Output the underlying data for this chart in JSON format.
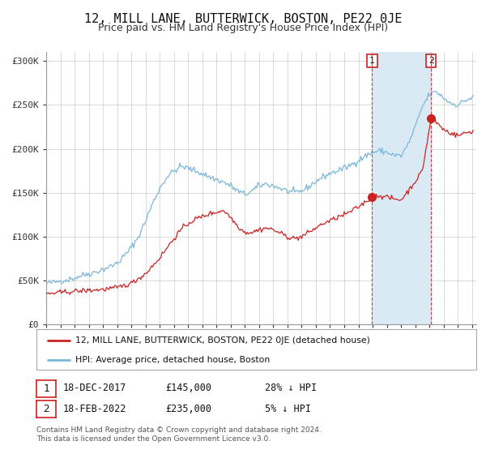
{
  "title": "12, MILL LANE, BUTTERWICK, BOSTON, PE22 0JE",
  "subtitle": "Price paid vs. HM Land Registry's House Price Index (HPI)",
  "ylim": [
    0,
    310000
  ],
  "xlim": [
    1995.0,
    2025.3
  ],
  "yticks": [
    0,
    50000,
    100000,
    150000,
    200000,
    250000,
    300000
  ],
  "ytick_labels": [
    "£0",
    "£50K",
    "£100K",
    "£150K",
    "£200K",
    "£250K",
    "£300K"
  ],
  "xticks": [
    1995,
    1996,
    1997,
    1998,
    1999,
    2000,
    2001,
    2002,
    2003,
    2004,
    2005,
    2006,
    2007,
    2008,
    2009,
    2010,
    2011,
    2012,
    2013,
    2014,
    2015,
    2016,
    2017,
    2018,
    2019,
    2020,
    2021,
    2022,
    2023,
    2024,
    2025
  ],
  "hpi_color": "#7ab8d9",
  "price_color": "#cc2222",
  "vline1_x": 2017.96,
  "vline2_x": 2022.12,
  "marker1_x": 2017.96,
  "marker1_y": 145000,
  "marker2_x": 2022.12,
  "marker2_y": 235000,
  "shade_color": "#daeaf5",
  "legend_price_label": "12, MILL LANE, BUTTERWICK, BOSTON, PE22 0JE (detached house)",
  "legend_hpi_label": "HPI: Average price, detached house, Boston",
  "note1_date": "18-DEC-2017",
  "note1_price": "£145,000",
  "note1_hpi": "28% ↓ HPI",
  "note2_date": "18-FEB-2022",
  "note2_price": "£235,000",
  "note2_hpi": "5% ↓ HPI",
  "footer": "Contains HM Land Registry data © Crown copyright and database right 2024.\nThis data is licensed under the Open Government Licence v3.0.",
  "background_color": "#ffffff",
  "grid_color": "#cccccc",
  "title_fontsize": 11,
  "subtitle_fontsize": 9
}
